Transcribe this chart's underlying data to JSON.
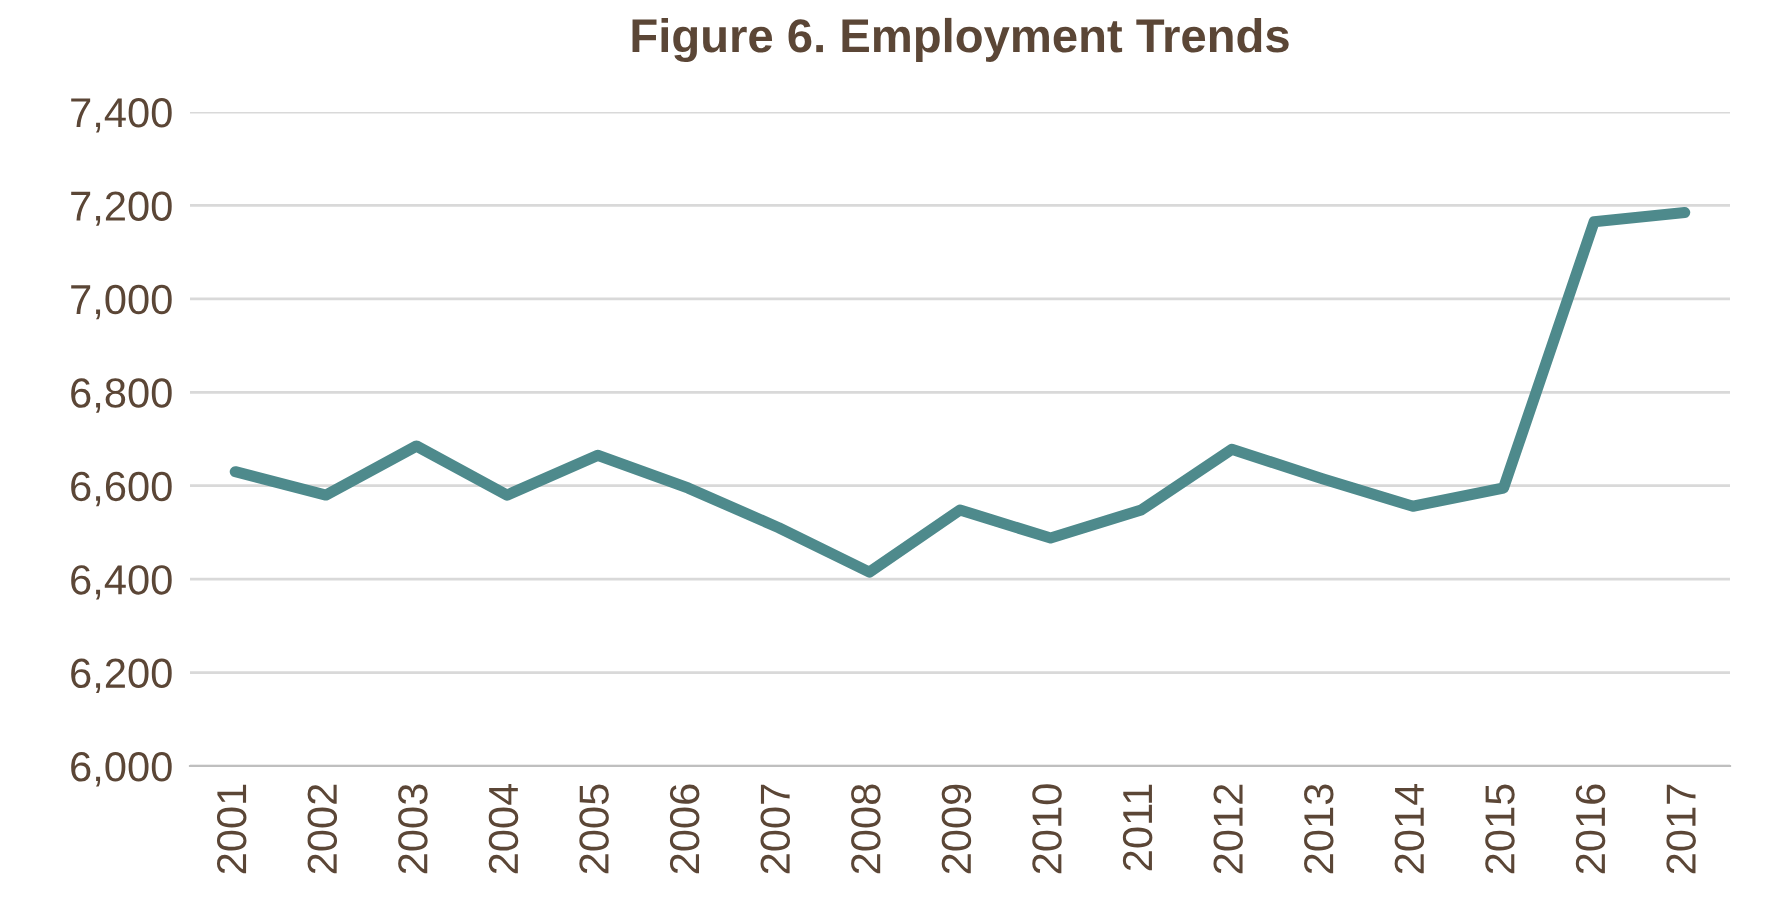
{
  "chart_data": {
    "type": "line",
    "title": "Figure 6. Employment Trends",
    "categories": [
      "2001",
      "2002",
      "2003",
      "2004",
      "2005",
      "2006",
      "2007",
      "2008",
      "2009",
      "2010",
      "2011",
      "2012",
      "2013",
      "2014",
      "2015",
      "2016",
      "2017"
    ],
    "series": [
      {
        "color": "#4e8a8c",
        "values": [
          6630,
          6580,
          6685,
          6580,
          6665,
          6595,
          6510,
          6415,
          6548,
          6488,
          6548,
          6678,
          6615,
          6556,
          6595,
          7165,
          7185
        ]
      }
    ],
    "ylim": [
      6000,
      7400
    ],
    "yticks": [
      {
        "value": 6000,
        "label": "6,000"
      },
      {
        "value": 6200,
        "label": "6,200"
      },
      {
        "value": 6400,
        "label": "6,400"
      },
      {
        "value": 6600,
        "label": "6,600"
      },
      {
        "value": 6800,
        "label": "6,800"
      },
      {
        "value": 7000,
        "label": "7,000"
      },
      {
        "value": 7200,
        "label": "7,200"
      },
      {
        "value": 7400,
        "label": "7,400"
      }
    ],
    "grid": "y",
    "marker": "none",
    "line_style": "solid"
  }
}
